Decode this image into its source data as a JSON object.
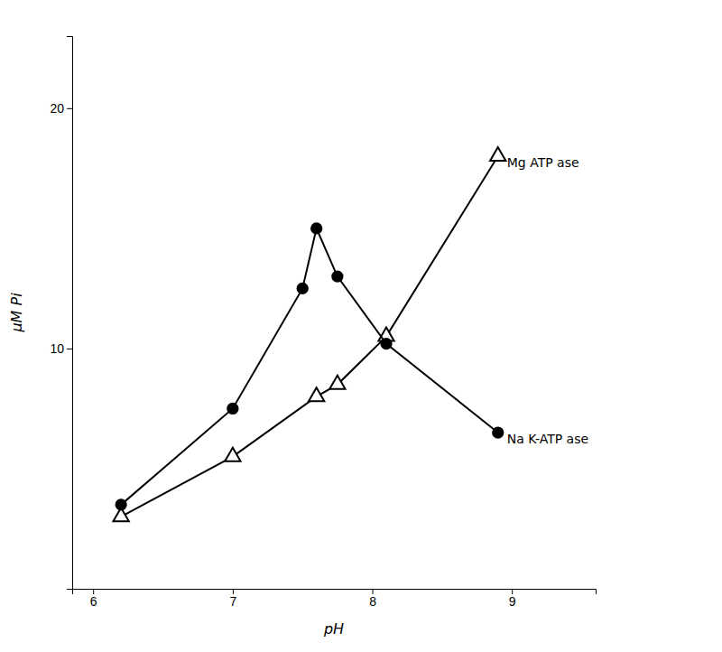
{
  "chart_data": {
    "type": "line",
    "series": [
      {
        "name": "Mg ATP ase",
        "color": "black",
        "marker": "triangle",
        "x": [
          6.2,
          7.0,
          7.6,
          7.75,
          8.1,
          8.9
        ],
        "values": [
          3.0,
          5.5,
          8.0,
          8.5,
          10.5,
          18.0
        ]
      },
      {
        "name": "Na K-ATP ase",
        "color": "black",
        "marker": "circle",
        "x": [
          6.2,
          7.0,
          7.5,
          7.6,
          7.75,
          8.1,
          8.9
        ],
        "values": [
          3.5,
          7.5,
          12.5,
          15.0,
          13.0,
          10.2,
          6.5
        ]
      }
    ],
    "x_label": "pH",
    "y_label": "μM Pi",
    "xlim": [
      5.85,
      9.6
    ],
    "ylim": [
      0,
      23
    ],
    "xticks": [
      6,
      7,
      8,
      9
    ],
    "yticks": [
      10,
      20
    ],
    "grid": false
  }
}
